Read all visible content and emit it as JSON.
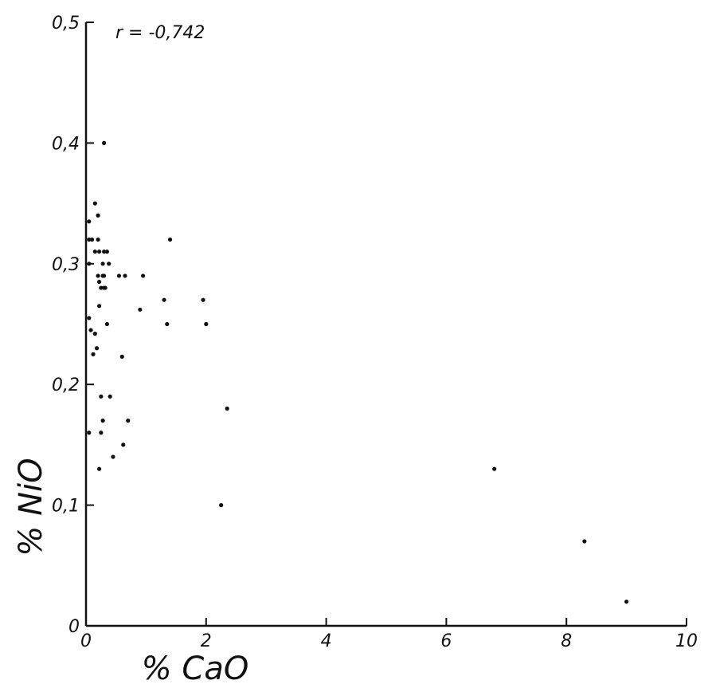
{
  "chart_data": {
    "type": "scatter",
    "title": "",
    "xlabel": "% CaO",
    "ylabel": "% NiO",
    "xlim": [
      0,
      10
    ],
    "ylim": [
      0,
      0.5
    ],
    "x_ticks": [
      0,
      2,
      4,
      6,
      8,
      10
    ],
    "x_tick_labels": [
      "0",
      "2",
      "4",
      "6",
      "8",
      "10"
    ],
    "y_ticks": [
      0,
      0.1,
      0.2,
      0.3,
      0.4,
      0.5
    ],
    "y_tick_labels": [
      "0",
      "0,1",
      "0,2",
      "0,3",
      "0,4",
      "0,5"
    ],
    "annotation": "r = -0,742",
    "grid": false,
    "series": [
      {
        "x": [
          0.05,
          0.05,
          0.05,
          0.05,
          0.05,
          0.08,
          0.1,
          0.12,
          0.15,
          0.15,
          0.15,
          0.18,
          0.2,
          0.2,
          0.2,
          0.22,
          0.22,
          0.22,
          0.22,
          0.25,
          0.25,
          0.25,
          0.28,
          0.28,
          0.28,
          0.3,
          0.3,
          0.3,
          0.3,
          0.32,
          0.35,
          0.35,
          0.38,
          0.4,
          0.45,
          0.55,
          0.6,
          0.62,
          0.65,
          0.7,
          0.9,
          0.95,
          1.3,
          1.35,
          1.4,
          1.95,
          2.0,
          2.25,
          2.35,
          6.8,
          8.3,
          9.0
        ],
        "y": [
          0.335,
          0.32,
          0.3,
          0.255,
          0.16,
          0.245,
          0.32,
          0.225,
          0.35,
          0.31,
          0.242,
          0.23,
          0.34,
          0.32,
          0.29,
          0.31,
          0.285,
          0.265,
          0.13,
          0.28,
          0.19,
          0.16,
          0.3,
          0.29,
          0.17,
          0.4,
          0.31,
          0.28,
          0.29,
          0.28,
          0.31,
          0.25,
          0.3,
          0.19,
          0.14,
          0.29,
          0.223,
          0.15,
          0.29,
          0.17,
          0.262,
          0.29,
          0.27,
          0.25,
          0.32,
          0.27,
          0.25,
          0.1,
          0.18,
          0.13,
          0.07,
          0.02
        ]
      }
    ]
  }
}
